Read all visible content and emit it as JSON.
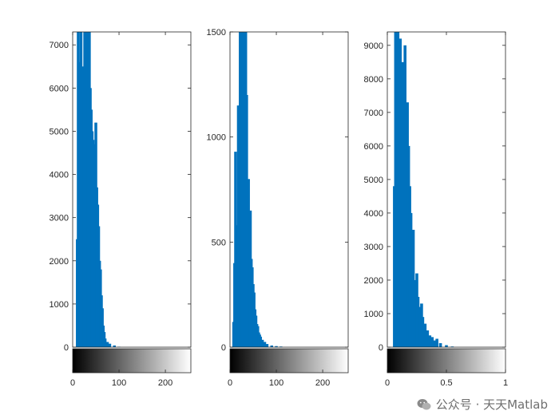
{
  "chart_data": [
    {
      "type": "bar",
      "bar_color": "#0072BD",
      "xlim": [
        0,
        255
      ],
      "ylim": [
        0,
        7300
      ],
      "xticks": [
        0,
        100,
        200
      ],
      "xtick_labels": [
        "0",
        "100",
        "200"
      ],
      "yticks": [
        0,
        1000,
        2000,
        3000,
        4000,
        5000,
        6000,
        7000
      ],
      "ytick_labels": [
        "0",
        "1000",
        "2000",
        "3000",
        "4000",
        "5000",
        "6000",
        "7000"
      ],
      "colorbar": true,
      "x": [
        10,
        12,
        14,
        16,
        18,
        20,
        22,
        24,
        26,
        28,
        30,
        32,
        34,
        36,
        38,
        40,
        42,
        44,
        46,
        48,
        50,
        52,
        54,
        56,
        58,
        60,
        62,
        64,
        66,
        68,
        70,
        75,
        80,
        90,
        100
      ],
      "values": [
        2500,
        7300,
        6600,
        6400,
        7300,
        5900,
        6500,
        5800,
        7300,
        6700,
        7300,
        7300,
        6000,
        7300,
        6000,
        5500,
        5000,
        4800,
        4500,
        4700,
        5200,
        3700,
        3300,
        2800,
        2000,
        1800,
        1200,
        900,
        500,
        350,
        200,
        120,
        80,
        40,
        10
      ]
    },
    {
      "type": "bar",
      "bar_color": "#0072BD",
      "xlim": [
        0,
        255
      ],
      "ylim": [
        0,
        1500
      ],
      "xticks": [
        0,
        100,
        200
      ],
      "xtick_labels": [
        "0",
        "100",
        "200"
      ],
      "yticks": [
        0,
        500,
        1000,
        1500
      ],
      "ytick_labels": [
        "0",
        "500",
        "1000",
        "1500"
      ],
      "colorbar": true,
      "x": [
        8,
        10,
        12,
        14,
        16,
        18,
        20,
        22,
        24,
        26,
        28,
        30,
        32,
        34,
        36,
        38,
        40,
        42,
        44,
        46,
        48,
        50,
        52,
        54,
        56,
        58,
        60,
        62,
        64,
        66,
        70,
        75,
        80,
        90,
        100,
        110
      ],
      "values": [
        120,
        400,
        930,
        520,
        580,
        1150,
        700,
        1500,
        1200,
        1500,
        1150,
        1500,
        850,
        1500,
        1200,
        750,
        800,
        600,
        650,
        420,
        380,
        300,
        260,
        180,
        150,
        110,
        100,
        70,
        60,
        50,
        35,
        25,
        15,
        8,
        5,
        3
      ]
    },
    {
      "type": "bar",
      "bar_color": "#0072BD",
      "xlim": [
        0,
        1
      ],
      "ylim": [
        0,
        9400
      ],
      "xticks": [
        0,
        0.5,
        1
      ],
      "xtick_labels": [
        "0",
        "0.5",
        "1"
      ],
      "yticks": [
        0,
        1000,
        2000,
        3000,
        4000,
        5000,
        6000,
        7000,
        8000,
        9000
      ],
      "ytick_labels": [
        "0",
        "1000",
        "2000",
        "3000",
        "4000",
        "5000",
        "6000",
        "7000",
        "8000",
        "9000"
      ],
      "colorbar": true,
      "x": [
        0.06,
        0.07,
        0.08,
        0.09,
        0.1,
        0.11,
        0.12,
        0.13,
        0.14,
        0.15,
        0.16,
        0.17,
        0.18,
        0.19,
        0.2,
        0.21,
        0.22,
        0.23,
        0.24,
        0.25,
        0.26,
        0.27,
        0.28,
        0.29,
        0.3,
        0.32,
        0.34,
        0.36,
        0.38,
        0.4,
        0.42,
        0.45,
        0.5,
        0.55
      ],
      "values": [
        4800,
        9400,
        7500,
        9400,
        6800,
        9200,
        4700,
        8500,
        6700,
        9000,
        5000,
        7300,
        6000,
        4800,
        4000,
        2900,
        3500,
        2000,
        1800,
        2200,
        1500,
        1200,
        1000,
        1300,
        900,
        700,
        500,
        350,
        300,
        200,
        250,
        120,
        60,
        20
      ]
    }
  ],
  "watermark": {
    "text": "公众号 · 天天Matlab",
    "icon": "wechat-icon"
  }
}
